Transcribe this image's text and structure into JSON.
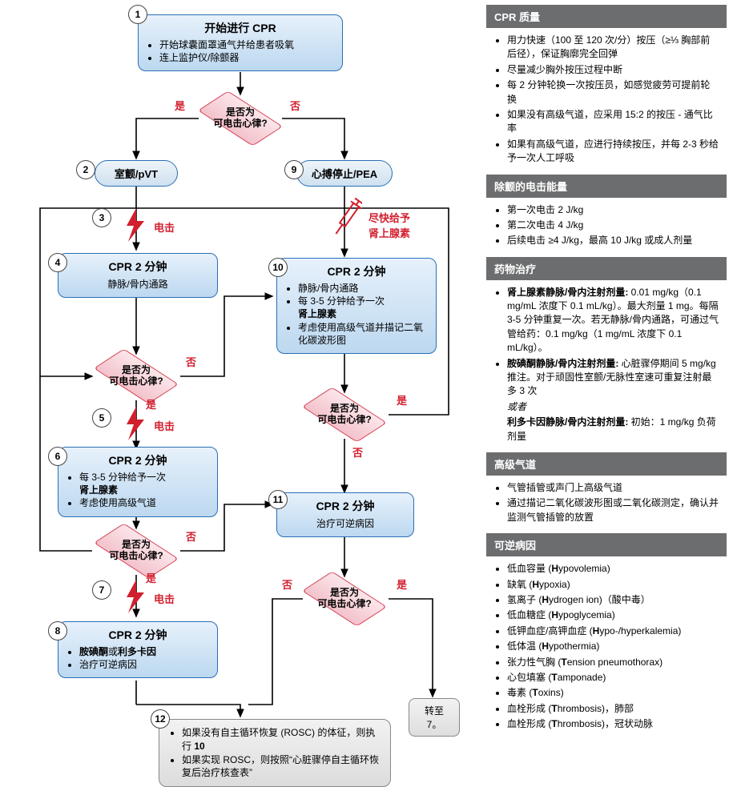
{
  "colors": {
    "box_border": "#2a6fb5",
    "box_fill_top": "#e7f1fb",
    "box_fill_bottom": "#bcd8f0",
    "diamond_border": "#d43b4e",
    "diamond_fill_top": "#fbe6ea",
    "diamond_fill_bottom": "#f3c2cb",
    "gray_border": "#888888",
    "side_header_bg": "#6c6d6f",
    "red_text": "#d21f2e",
    "arrow": "#000000"
  },
  "steps": {
    "s1": "1",
    "s2": "2",
    "s3": "3",
    "s4": "4",
    "s5": "5",
    "s6": "6",
    "s7": "7",
    "s8": "8",
    "s9": "9",
    "s10": "10",
    "s11": "11",
    "s12": "12"
  },
  "labels": {
    "yes": "是",
    "no": "否",
    "shock": "电击",
    "epi_prompt_l1": "尽快给予",
    "epi_prompt_l2": "肾上腺素"
  },
  "decision": {
    "line1": "是否为",
    "line2": "可电击心律?"
  },
  "box1": {
    "title": "开始进行 CPR",
    "items": [
      "开始球囊面罩通气并给患者吸氧",
      "连上监护仪/除颤器"
    ]
  },
  "box2": {
    "title": "室颤/pVT"
  },
  "box9": {
    "title": "心搏停止/PEA"
  },
  "box4": {
    "title": "CPR 2 分钟",
    "sub": "静脉/骨内通路"
  },
  "box6": {
    "title": "CPR 2 分钟",
    "items": [
      "每 3-5 分钟给予一次",
      "考虑使用高级气道"
    ],
    "bold_insert": "肾上腺素"
  },
  "box8": {
    "title": "CPR 2 分钟",
    "items_html": [
      "<span class='bold'>胺碘酮</span>或<span class='bold'>利多卡因</span>",
      "治疗可逆病因"
    ]
  },
  "box10": {
    "title": "CPR 2 分钟",
    "items": [
      "静脉/骨内通路",
      "每 3-5 分钟给予一次",
      "考虑使用高级气道并描记二氧化碳波形图"
    ],
    "bold_insert": "肾上腺素"
  },
  "box11": {
    "title": "CPR 2 分钟",
    "sub": "治疗可逆病因"
  },
  "box12": {
    "items_html": [
      "如果没有自主循环恢复 (ROSC) 的体征，则执行 <span class='bold'>10</span>",
      "如果实现 ROSC，则按照“心脏骤停自主循环恢复后治疗核查表”"
    ]
  },
  "goto": {
    "text": "转至 7。"
  },
  "sidebar": {
    "s1": {
      "header": "CPR 质量",
      "items": [
        "用力快速（100 至 120 次/分）按压（≥⅓ 胸部前后径），保证胸廓完全回弹",
        "尽量减少胸外按压过程中断",
        "每 2 分钟轮换一次按压员，如感觉疲劳可提前轮换",
        "如果没有高级气道，应采用 15:2 的按压 - 通气比率",
        "如果有高级气道，应进行持续按压，并每 2-3 秒给予一次人工呼吸"
      ]
    },
    "s2": {
      "header": "除颤的电击能量",
      "items": [
        "第一次电击 2 J/kg",
        "第二次电击 4 J/kg",
        "后续电击 ≥4 J/kg，最高 10 J/kg 或成人剂量"
      ]
    },
    "s3": {
      "header": "药物治疗",
      "paras": [
        "<span class='bold'>肾上腺素静脉/骨内注射剂量:</span> 0.01 mg/kg（0.1 mg/mL 浓度下 0.1 mL/kg）。最大剂量 1 mg。每隔 3-5 分钟重复一次。若无静脉/骨内通路，可通过气管给药：0.1 mg/kg（1 mg/mL 浓度下 0.1 mL/kg）。",
        "<span class='bold'>胺碘酮静脉/骨内注射剂量:</span> 心脏骤停期间 5 mg/kg 推注。对于顽固性室颤/无脉性室速可重复注射最多 3 次",
        "<span style='font-style:italic'>或者</span>",
        "<span class='bold'>利多卡因静脉/骨内注射剂量:</span> 初始：1 mg/kg 负荷剂量"
      ]
    },
    "s4": {
      "header": "高级气道",
      "items": [
        "气管插管或声门上高级气道",
        "通过描记二氧化碳波形图或二氧化碳测定，确认并监测气管插管的放置"
      ]
    },
    "s5": {
      "header": "可逆病因",
      "items": [
        "低血容量 (<span class='bold'>H</span>ypovolemia)",
        "缺氧 (<span class='bold'>H</span>ypoxia)",
        "氢离子 (<span class='bold'>H</span>ydrogen ion)（酸中毒）",
        "低血糖症 (<span class='bold'>H</span>ypoglycemia)",
        "低钾血症/高钾血症 (<span class='bold'>H</span>ypo-/hyperkalemia)",
        "低体温 (<span class='bold'>H</span>ypothermia)",
        "张力性气胸 (<span class='bold'>T</span>ension pneumothorax)",
        "心包填塞 (<span class='bold'>T</span>amponade)",
        "毒素 (<span class='bold'>T</span>oxins)",
        "血栓形成 (<span class='bold'>T</span>hrombosis)，肺部",
        "血栓形成 (<span class='bold'>T</span>hrombosis)，冠状动脉"
      ]
    }
  }
}
